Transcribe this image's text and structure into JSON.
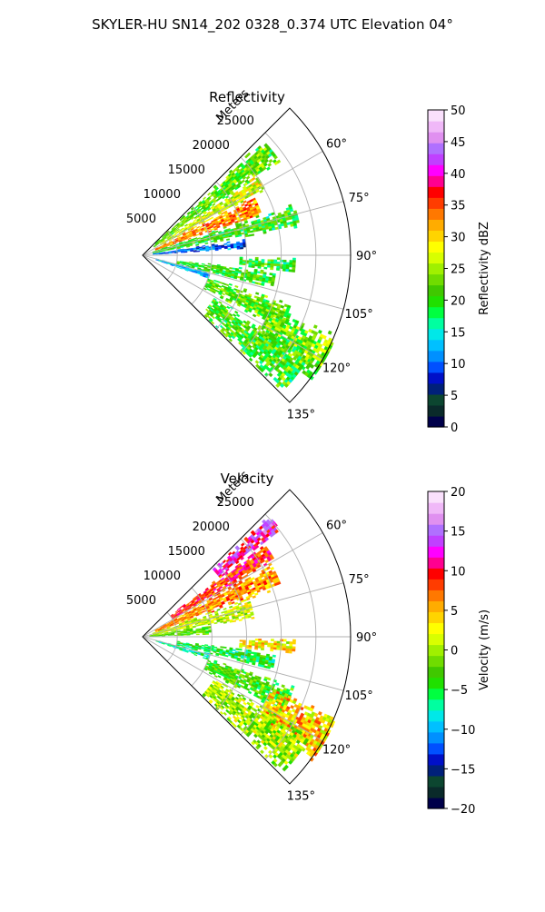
{
  "figure": {
    "title": "SKYLER-HU  SN14_202  0328_0.374 UTC Elevation 04°"
  },
  "chart_data": [
    {
      "type": "heatmap",
      "title": "Reflectivity",
      "projection": "polar-sector",
      "theta_range_deg": [
        45,
        135
      ],
      "theta_ticks": [
        "60°",
        "75°",
        "90°",
        "105°",
        "120°",
        "135°"
      ],
      "theta_tick_values": [
        60,
        75,
        90,
        105,
        120,
        135
      ],
      "r_label": "Meters",
      "r_range": [
        0,
        30000
      ],
      "r_ticks": [
        "5000",
        "10000",
        "15000",
        "20000",
        "25000"
      ],
      "r_tick_values": [
        5000,
        10000,
        15000,
        20000,
        25000
      ],
      "grid": true,
      "colorbar": {
        "label": "Reflectivity dBZ",
        "range": [
          0,
          50
        ],
        "tick_values": [
          0,
          5,
          10,
          15,
          20,
          25,
          30,
          35,
          40,
          45,
          50
        ],
        "tick_labels": [
          "0",
          "5",
          "10",
          "15",
          "20",
          "25",
          "30",
          "35",
          "40",
          "45",
          "50"
        ],
        "colors": [
          "#00004a",
          "#0a2a2a",
          "#0c4630",
          "#00207a",
          "#0010c8",
          "#0050ff",
          "#0090ff",
          "#00c0ff",
          "#00e8e8",
          "#00ffa0",
          "#00ff40",
          "#20e000",
          "#40c800",
          "#70dc00",
          "#a0f000",
          "#d8ff00",
          "#ffff00",
          "#ffd400",
          "#ffac00",
          "#ff7800",
          "#ff3c00",
          "#ff0000",
          "#ff0090",
          "#ff00ff",
          "#c040ff",
          "#b070ff",
          "#e090f0",
          "#f0b8f8",
          "#fae0fc"
        ]
      },
      "echoes": [
        {
          "az": [
            46,
            55
          ],
          "r": [
            2000,
            24000
          ],
          "value": 22
        },
        {
          "az": [
            55,
            62
          ],
          "r": [
            3000,
            20000
          ],
          "value": 27
        },
        {
          "az": [
            62,
            71
          ],
          "r": [
            2000,
            18000
          ],
          "value": 33
        },
        {
          "az": [
            71,
            80
          ],
          "r": [
            1500,
            23000
          ],
          "value": 20
        },
        {
          "az": [
            81,
            86
          ],
          "r": [
            1500,
            15000
          ],
          "value": 10
        },
        {
          "az": [
            91,
            96
          ],
          "r": [
            14000,
            22000
          ],
          "value": 20
        },
        {
          "az": [
            97,
            104
          ],
          "r": [
            5000,
            19000
          ],
          "value": 20
        },
        {
          "az": [
            104,
            109
          ],
          "r": [
            2000,
            10000
          ],
          "value": 13
        },
        {
          "az": [
            108,
            118
          ],
          "r": [
            10000,
            23000
          ],
          "value": 22
        },
        {
          "az": [
            112,
            126
          ],
          "r": [
            20000,
            30000
          ],
          "value": 23
        },
        {
          "az": [
            120,
            134
          ],
          "r": [
            12000,
            28000
          ],
          "value": 21
        }
      ]
    },
    {
      "type": "heatmap",
      "title": "Velocity",
      "projection": "polar-sector",
      "theta_range_deg": [
        45,
        135
      ],
      "theta_ticks": [
        "60°",
        "75°",
        "90°",
        "105°",
        "120°",
        "135°"
      ],
      "theta_tick_values": [
        60,
        75,
        90,
        105,
        120,
        135
      ],
      "r_label": "Meters",
      "r_range": [
        0,
        30000
      ],
      "r_ticks": [
        "5000",
        "10000",
        "15000",
        "20000",
        "25000"
      ],
      "r_tick_values": [
        5000,
        10000,
        15000,
        20000,
        25000
      ],
      "grid": true,
      "colorbar": {
        "label": "Velocity (m/s)",
        "range": [
          -20,
          20
        ],
        "tick_values": [
          -20,
          -15,
          -10,
          -5,
          0,
          5,
          10,
          15,
          20
        ],
        "tick_labels": [
          "−20",
          "−15",
          "−10",
          "−5",
          "0",
          "5",
          "10",
          "15",
          "20"
        ],
        "colors": [
          "#00004a",
          "#0a2a2a",
          "#0c4630",
          "#00207a",
          "#0010c8",
          "#0050ff",
          "#0090ff",
          "#00c0ff",
          "#00e8e8",
          "#00ffa0",
          "#00ff40",
          "#20e000",
          "#40c800",
          "#70dc00",
          "#a0f000",
          "#d8ff00",
          "#ffff00",
          "#ffd400",
          "#ffac00",
          "#ff7800",
          "#ff3c00",
          "#ff0000",
          "#ff0090",
          "#ff00ff",
          "#c040ff",
          "#b070ff",
          "#e090f0",
          "#f0b8f8",
          "#fae0fc"
        ]
      },
      "echoes": [
        {
          "az": [
            46,
            52
          ],
          "r": [
            14000,
            25000
          ],
          "value": 12
        },
        {
          "az": [
            52,
            60
          ],
          "r": [
            5000,
            22000
          ],
          "value": 9
        },
        {
          "az": [
            60,
            70
          ],
          "r": [
            2000,
            21000
          ],
          "value": 6
        },
        {
          "az": [
            70,
            80
          ],
          "r": [
            1500,
            16000
          ],
          "value": 1
        },
        {
          "az": [
            80,
            88
          ],
          "r": [
            1000,
            10000
          ],
          "value": -2
        },
        {
          "az": [
            91,
            96
          ],
          "r": [
            14000,
            22000
          ],
          "value": 3
        },
        {
          "az": [
            97,
            104
          ],
          "r": [
            5000,
            19000
          ],
          "value": -5
        },
        {
          "az": [
            104,
            109
          ],
          "r": [
            2000,
            10000
          ],
          "value": -7
        },
        {
          "az": [
            108,
            118
          ],
          "r": [
            10000,
            23000
          ],
          "value": -3
        },
        {
          "az": [
            112,
            126
          ],
          "r": [
            20000,
            30000
          ],
          "value": 4
        },
        {
          "az": [
            120,
            134
          ],
          "r": [
            12000,
            28000
          ],
          "value": 0
        }
      ]
    }
  ]
}
